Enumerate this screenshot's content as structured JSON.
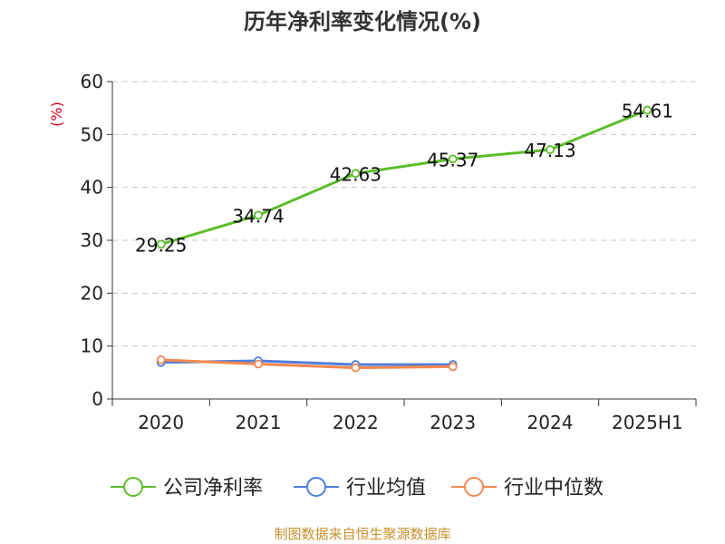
{
  "chart_data": {
    "type": "line",
    "title": "历年净利率变化情况(%)",
    "ylabel": "(%)",
    "categories": [
      "2020",
      "2021",
      "2022",
      "2023",
      "2024",
      "2025H1"
    ],
    "yticks": [
      "0",
      "10",
      "20",
      "30",
      "40",
      "50",
      "60"
    ],
    "ylim": [
      0,
      60
    ],
    "grid": true,
    "legend_position": "bottom",
    "series": [
      {
        "name": "公司净利率",
        "color": "#5cbd2a",
        "values": [
          29.25,
          34.74,
          42.63,
          45.37,
          47.13,
          54.61
        ],
        "labels": [
          "29.25",
          "34.74",
          "42.63",
          "45.37",
          "47.13",
          "54.61"
        ]
      },
      {
        "name": "行业均值",
        "color": "#4f7fdc",
        "values": [
          6.9,
          7.2,
          6.5,
          6.5,
          null,
          null
        ]
      },
      {
        "name": "行业中位数",
        "color": "#f5884f",
        "values": [
          7.4,
          6.6,
          5.9,
          6.1,
          null,
          null
        ]
      }
    ],
    "source": "制图数据来自恒生聚源数据库"
  }
}
